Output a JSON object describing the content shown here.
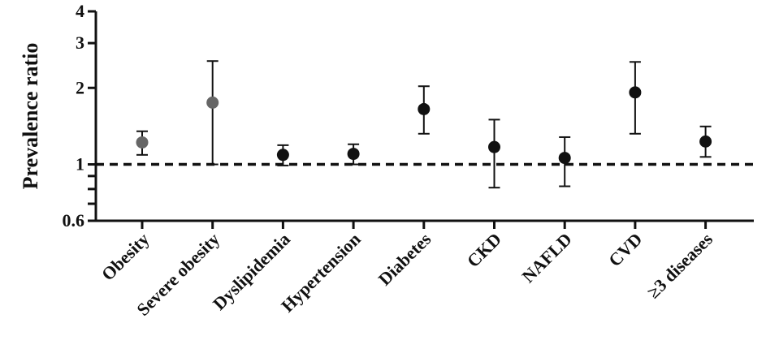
{
  "chart_data": {
    "type": "scatter",
    "ylabel": "Prevalence ratio",
    "yscale": "log",
    "ylim": [
      0.6,
      4
    ],
    "yticks_labeled": [
      0.6,
      1,
      2,
      3,
      4
    ],
    "yticks_labels": [
      "0.6",
      "1",
      "2",
      "3",
      "4"
    ],
    "yticks_minor": [
      0.7,
      0.8,
      0.9
    ],
    "reference_line": 1,
    "grid": false,
    "categories": [
      "Obesity",
      "Severe obesity",
      "Dyslipidemia",
      "Hypertension",
      "Diabetes",
      "CKD",
      "NAFLD",
      "CVD",
      "≥3 diseases"
    ],
    "values": [
      1.22,
      1.75,
      1.09,
      1.1,
      1.65,
      1.17,
      1.06,
      1.92,
      1.23
    ],
    "lower": [
      1.09,
      1.0,
      0.99,
      1.0,
      1.32,
      0.81,
      0.82,
      1.32,
      1.07
    ],
    "upper": [
      1.35,
      2.55,
      1.19,
      1.2,
      2.03,
      1.5,
      1.28,
      2.53,
      1.41
    ],
    "point_colors": [
      "#666666",
      "#666666",
      "#111111",
      "#111111",
      "#111111",
      "#111111",
      "#111111",
      "#111111",
      "#111111"
    ]
  }
}
